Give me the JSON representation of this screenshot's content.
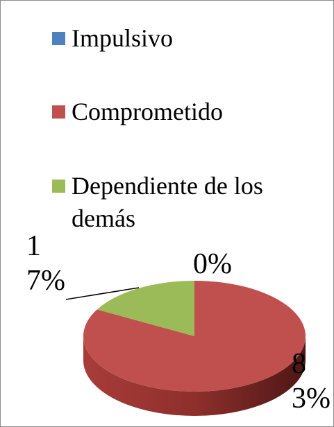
{
  "chart_data": {
    "type": "pie",
    "categories": [
      "Impulsivo",
      "Comprometido",
      "Dependiente de los demás"
    ],
    "values": [
      0,
      83,
      17
    ],
    "value_labels": [
      "0%",
      "83%",
      "17%"
    ],
    "colors": [
      "#4f81bd",
      "#c0504d",
      "#9bbb59"
    ]
  }
}
